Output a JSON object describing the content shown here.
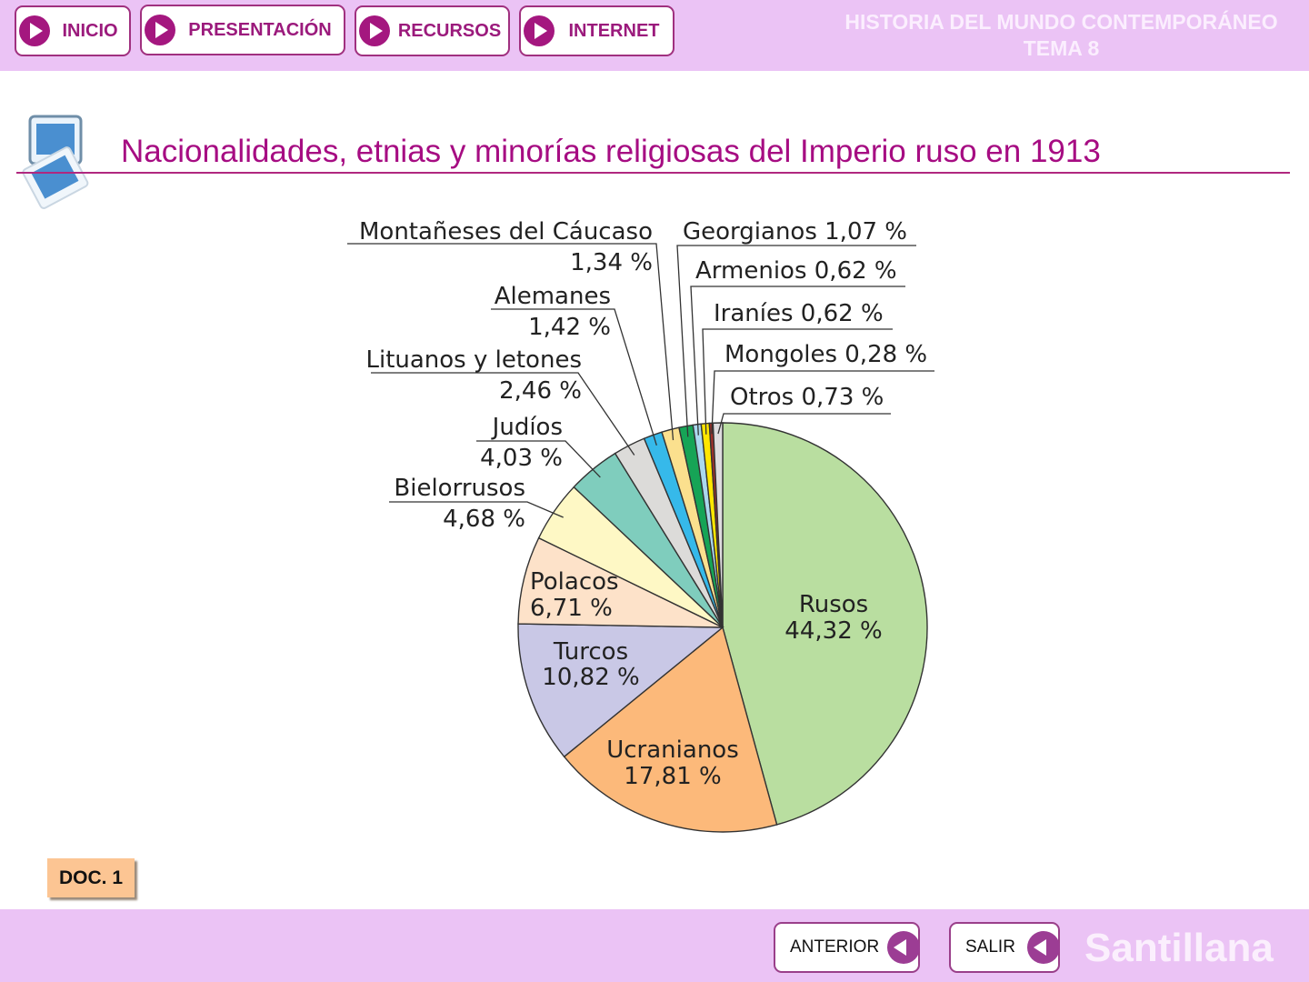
{
  "header": {
    "nav": [
      {
        "label": "INICIO"
      },
      {
        "label": "PRESENTACIÓN"
      },
      {
        "label": "RECURSOS"
      },
      {
        "label": "INTERNET"
      }
    ],
    "title_line1": "HISTORIA DEL MUNDO CONTEMPORÁNEO",
    "title_line2": "TEMA 8"
  },
  "page": {
    "title": "Nacionalidades, etnias y minorías religiosas del Imperio ruso en 1913",
    "doc_badge": "DOC. 1"
  },
  "footer": {
    "previous_label": "ANTERIOR",
    "exit_label": "SALIR",
    "brand": "Santillana"
  },
  "colors": {
    "bar_bg": "#ebc3f5",
    "accent": "#a4177f"
  },
  "chart_data": {
    "type": "pie",
    "title": "Nacionalidades, etnias y minorías religiosas del Imperio ruso en 1913",
    "unit": "%",
    "start_angle": "12 o'clock, clockwise",
    "slices": [
      {
        "name": "Rusos",
        "value": 44.32,
        "display": "44,32 %",
        "color": "#b9dea0"
      },
      {
        "name": "Ucranianos",
        "value": 17.81,
        "display": "17,81 %",
        "color": "#fcb97a"
      },
      {
        "name": "Turcos",
        "value": 10.82,
        "display": "10,82 %",
        "color": "#c9c8e6"
      },
      {
        "name": "Polacos",
        "value": 6.71,
        "display": "6,71 %",
        "color": "#fde2c9"
      },
      {
        "name": "Bielorrusos",
        "value": 4.68,
        "display": "4,68 %",
        "color": "#fef8c5"
      },
      {
        "name": "Judíos",
        "value": 4.03,
        "display": "4,03 %",
        "color": "#7fcdbd"
      },
      {
        "name": "Lituanos y letones",
        "value": 2.46,
        "display": "2,46 %",
        "color": "#dcdbd9"
      },
      {
        "name": "Alemanes",
        "value": 1.42,
        "display": "1,42 %",
        "color": "#36b9ea"
      },
      {
        "name": "Montañeses del Cáucaso",
        "value": 1.34,
        "display": "1,34 %",
        "color": "#fbe08e"
      },
      {
        "name": "Georgianos",
        "value": 1.07,
        "display": "1,07 %",
        "color": "#16a456"
      },
      {
        "name": "Armenios",
        "value": 0.62,
        "display": "0,62 %",
        "color": "#abd8ee"
      },
      {
        "name": "Iraníes",
        "value": 0.62,
        "display": "0,62 %",
        "color": "#ffe600"
      },
      {
        "name": "Mongoles",
        "value": 0.28,
        "display": "0,28 %",
        "color": "#a0302a"
      },
      {
        "name": "Otros",
        "value": 0.73,
        "display": "0,73 %",
        "color": "#dedcde"
      }
    ]
  }
}
